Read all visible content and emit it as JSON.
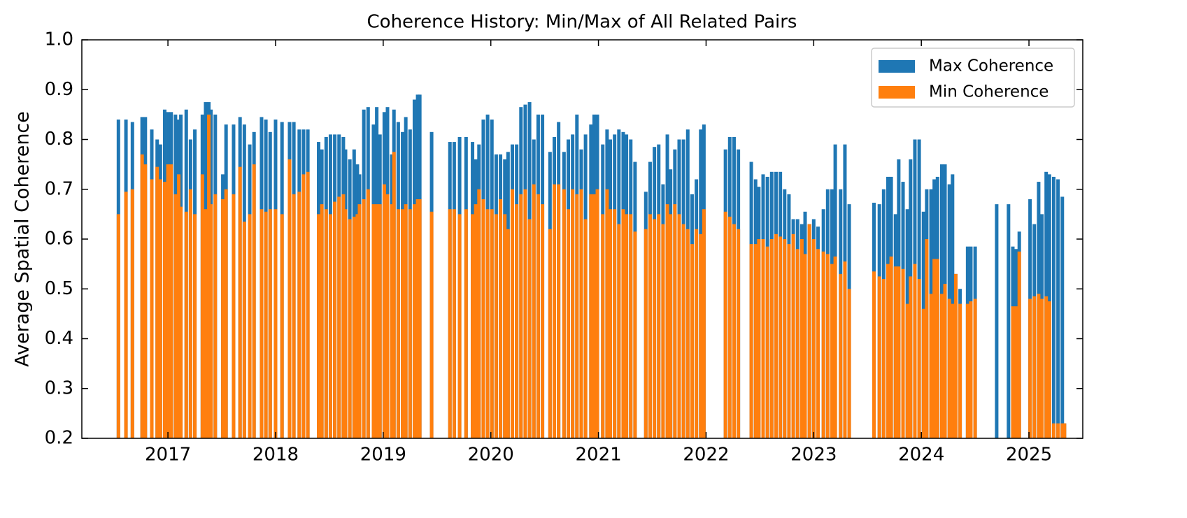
{
  "chart_data": {
    "type": "bar",
    "title": "Coherence History: Min/Max of All Related Pairs",
    "y_label": "Average Spatial Coherence",
    "x": [
      2016.54,
      2016.61,
      2016.67,
      2016.76,
      2016.79,
      2016.85,
      2016.9,
      2016.93,
      2016.97,
      2017.0,
      2017.03,
      2017.07,
      2017.1,
      2017.12,
      2017.17,
      2017.21,
      2017.25,
      2017.32,
      2017.35,
      2017.38,
      2017.4,
      2017.44,
      2017.51,
      2017.54,
      2017.61,
      2017.67,
      2017.71,
      2017.76,
      2017.8,
      2017.87,
      2017.91,
      2017.95,
      2018.0,
      2018.06,
      2018.13,
      2018.17,
      2018.22,
      2018.26,
      2018.3,
      2018.4,
      2018.43,
      2018.47,
      2018.51,
      2018.55,
      2018.59,
      2018.63,
      2018.65,
      2018.69,
      2018.73,
      2018.76,
      2018.78,
      2018.82,
      2018.86,
      2018.91,
      2018.94,
      2018.97,
      2019.01,
      2019.04,
      2019.08,
      2019.1,
      2019.14,
      2019.18,
      2019.21,
      2019.25,
      2019.29,
      2019.32,
      2019.34,
      2019.45,
      2019.62,
      2019.66,
      2019.71,
      2019.77,
      2019.83,
      2019.86,
      2019.89,
      2019.93,
      2019.97,
      2020.01,
      2020.05,
      2020.09,
      2020.13,
      2020.16,
      2020.2,
      2020.24,
      2020.28,
      2020.32,
      2020.36,
      2020.4,
      2020.44,
      2020.48,
      2020.55,
      2020.59,
      2020.63,
      2020.68,
      2020.72,
      2020.76,
      2020.8,
      2020.84,
      2020.88,
      2020.93,
      2020.96,
      2020.99,
      2021.04,
      2021.08,
      2021.11,
      2021.15,
      2021.19,
      2021.23,
      2021.26,
      2021.3,
      2021.34,
      2021.44,
      2021.48,
      2021.52,
      2021.56,
      2021.6,
      2021.64,
      2021.67,
      2021.71,
      2021.75,
      2021.79,
      2021.83,
      2021.87,
      2021.91,
      2021.95,
      2021.98,
      2022.18,
      2022.22,
      2022.26,
      2022.3,
      2022.42,
      2022.46,
      2022.49,
      2022.53,
      2022.57,
      2022.61,
      2022.65,
      2022.69,
      2022.73,
      2022.77,
      2022.81,
      2022.85,
      2022.89,
      2022.92,
      2022.96,
      2023.0,
      2023.04,
      2023.09,
      2023.13,
      2023.17,
      2023.2,
      2023.25,
      2023.29,
      2023.33,
      2023.56,
      2023.61,
      2023.65,
      2023.69,
      2023.72,
      2023.76,
      2023.79,
      2023.83,
      2023.87,
      2023.9,
      2023.94,
      2023.98,
      2024.02,
      2024.05,
      2024.09,
      2024.12,
      2024.15,
      2024.19,
      2024.22,
      2024.26,
      2024.29,
      2024.32,
      2024.36,
      2024.43,
      2024.46,
      2024.5,
      2024.7,
      2024.81,
      2024.85,
      2024.88,
      2024.91,
      2025.01,
      2025.05,
      2025.09,
      2025.12,
      2025.16,
      2025.19,
      2025.23,
      2025.27,
      2025.31,
      2025.33
    ],
    "series": [
      {
        "name": "Max Coherence",
        "color": "#1f77b4",
        "values": [
          0.84,
          0.84,
          0.835,
          0.845,
          0.845,
          0.82,
          0.8,
          0.79,
          0.86,
          0.855,
          0.855,
          0.85,
          0.84,
          0.85,
          0.86,
          0.8,
          0.82,
          0.85,
          0.875,
          0.875,
          0.86,
          0.85,
          0.73,
          0.83,
          0.83,
          0.845,
          0.83,
          0.79,
          0.815,
          0.845,
          0.84,
          0.815,
          0.84,
          0.835,
          0.835,
          0.835,
          0.82,
          0.82,
          0.82,
          0.795,
          0.78,
          0.805,
          0.81,
          0.81,
          0.81,
          0.805,
          0.78,
          0.76,
          0.78,
          0.75,
          0.73,
          0.86,
          0.865,
          0.83,
          0.865,
          0.81,
          0.855,
          0.865,
          0.77,
          0.86,
          0.835,
          0.815,
          0.845,
          0.82,
          0.88,
          0.89,
          0.89,
          0.815,
          0.795,
          0.795,
          0.805,
          0.805,
          0.795,
          0.76,
          0.79,
          0.84,
          0.85,
          0.84,
          0.77,
          0.77,
          0.76,
          0.775,
          0.79,
          0.79,
          0.865,
          0.87,
          0.875,
          0.8,
          0.85,
          0.85,
          0.775,
          0.805,
          0.835,
          0.775,
          0.8,
          0.81,
          0.85,
          0.78,
          0.81,
          0.83,
          0.85,
          0.85,
          0.79,
          0.82,
          0.8,
          0.81,
          0.82,
          0.815,
          0.81,
          0.8,
          0.755,
          0.695,
          0.755,
          0.785,
          0.79,
          0.71,
          0.81,
          0.74,
          0.78,
          0.8,
          0.8,
          0.82,
          0.69,
          0.72,
          0.82,
          0.83,
          0.78,
          0.805,
          0.805,
          0.78,
          0.755,
          0.72,
          0.705,
          0.73,
          0.725,
          0.735,
          0.735,
          0.735,
          0.7,
          0.69,
          0.64,
          0.64,
          0.63,
          0.655,
          0.63,
          0.64,
          0.625,
          0.66,
          0.7,
          0.7,
          0.79,
          0.7,
          0.79,
          0.67,
          0.673,
          0.67,
          0.7,
          0.725,
          0.725,
          0.65,
          0.76,
          0.715,
          0.66,
          0.76,
          0.8,
          0.8,
          0.655,
          0.7,
          0.7,
          0.72,
          0.725,
          0.75,
          0.75,
          0.71,
          0.73,
          0.53,
          0.5,
          0.585,
          0.585,
          0.585,
          0.67,
          0.67,
          0.585,
          0.58,
          0.615,
          0.68,
          0.63,
          0.715,
          0.65,
          0.735,
          0.73,
          0.725,
          0.72,
          0.685,
          0.23
        ]
      },
      {
        "name": "Min Coherence",
        "color": "#ff7f0e",
        "values": [
          0.65,
          0.695,
          0.7,
          0.77,
          0.75,
          0.72,
          0.745,
          0.72,
          0.715,
          0.75,
          0.75,
          0.69,
          0.73,
          0.665,
          0.655,
          0.7,
          0.65,
          0.73,
          0.66,
          0.85,
          0.67,
          0.69,
          0.68,
          0.7,
          0.69,
          0.745,
          0.635,
          0.65,
          0.75,
          0.66,
          0.655,
          0.66,
          0.66,
          0.65,
          0.76,
          0.69,
          0.695,
          0.73,
          0.735,
          0.65,
          0.67,
          0.66,
          0.65,
          0.675,
          0.685,
          0.69,
          0.66,
          0.64,
          0.645,
          0.65,
          0.67,
          0.68,
          0.7,
          0.67,
          0.67,
          0.67,
          0.71,
          0.69,
          0.67,
          0.775,
          0.66,
          0.66,
          0.67,
          0.66,
          0.67,
          0.68,
          0.68,
          0.655,
          0.66,
          0.66,
          0.65,
          0.66,
          0.65,
          0.67,
          0.7,
          0.68,
          0.66,
          0.66,
          0.65,
          0.68,
          0.65,
          0.62,
          0.7,
          0.67,
          0.69,
          0.7,
          0.64,
          0.71,
          0.69,
          0.67,
          0.62,
          0.71,
          0.71,
          0.7,
          0.66,
          0.7,
          0.69,
          0.7,
          0.64,
          0.69,
          0.69,
          0.7,
          0.65,
          0.7,
          0.66,
          0.66,
          0.63,
          0.66,
          0.65,
          0.65,
          0.615,
          0.62,
          0.65,
          0.64,
          0.65,
          0.63,
          0.67,
          0.65,
          0.67,
          0.65,
          0.63,
          0.62,
          0.59,
          0.62,
          0.61,
          0.66,
          0.655,
          0.645,
          0.63,
          0.62,
          0.59,
          0.59,
          0.6,
          0.6,
          0.585,
          0.6,
          0.61,
          0.605,
          0.6,
          0.59,
          0.61,
          0.58,
          0.6,
          0.57,
          0.63,
          0.6,
          0.58,
          0.575,
          0.57,
          0.55,
          0.565,
          0.53,
          0.555,
          0.5,
          0.535,
          0.525,
          0.52,
          0.55,
          0.565,
          0.545,
          0.545,
          0.54,
          0.47,
          0.525,
          0.55,
          0.52,
          0.46,
          0.6,
          0.49,
          0.56,
          0.56,
          0.49,
          0.51,
          0.48,
          0.47,
          0.53,
          0.47,
          0.47,
          0.475,
          0.48,
          0.2,
          0.2,
          0.465,
          0.465,
          0.575,
          0.48,
          0.485,
          0.49,
          0.48,
          0.485,
          0.475,
          0.23,
          0.23,
          0.23,
          0.23
        ]
      }
    ],
    "xlim": [
      2016.2,
      2025.5
    ],
    "xticks": [
      2017,
      2018,
      2019,
      2020,
      2021,
      2022,
      2023,
      2024,
      2025
    ],
    "ylim": [
      0.2,
      1.0
    ],
    "yticks": [
      {
        "value": 0.2,
        "label": "0.2"
      },
      {
        "value": 0.3,
        "label": "0.3"
      },
      {
        "value": 0.4,
        "label": "0.4"
      },
      {
        "value": 0.5,
        "label": "0.5"
      },
      {
        "value": 0.6,
        "label": "0.6"
      },
      {
        "value": 0.7,
        "label": "0.7"
      },
      {
        "value": 0.8,
        "label": "0.8"
      },
      {
        "value": 0.9,
        "label": "0.9"
      },
      {
        "value": 1.0,
        "label": "1.0"
      }
    ],
    "grid": false,
    "legend": "upper right"
  }
}
